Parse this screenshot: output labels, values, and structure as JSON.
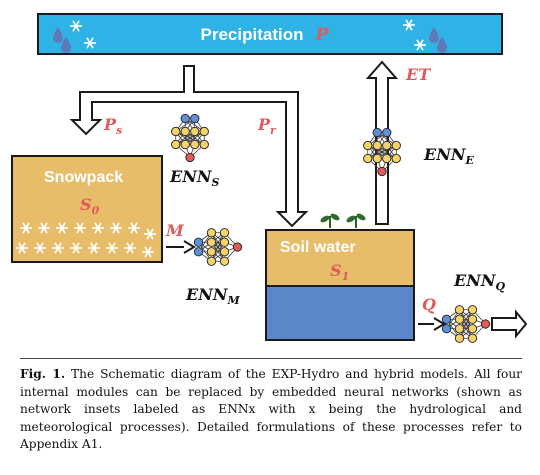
{
  "precipitation": {
    "label": "Precipitation",
    "symbol": "P"
  },
  "snowpack": {
    "label": "Snowpack",
    "state": "S",
    "state_sub": "0"
  },
  "soil": {
    "label": "Soil water",
    "state": "S",
    "state_sub": "1"
  },
  "fluxes": {
    "ps": {
      "main": "P",
      "sub": "s"
    },
    "pr": {
      "main": "P",
      "sub": "r"
    },
    "m": {
      "main": "M"
    },
    "q": {
      "main": "Q"
    },
    "et": {
      "main": "ET"
    }
  },
  "networks": {
    "s": {
      "main": "ENN",
      "sub": "S"
    },
    "m": {
      "main": "ENN",
      "sub": "M"
    },
    "e": {
      "main": "ENN",
      "sub": "E"
    },
    "q": {
      "main": "ENN",
      "sub": "Q"
    }
  },
  "colors": {
    "sky_blue": "#2fb3e6",
    "sand": "#e8bd6a",
    "soil_water": "#5b86c9",
    "accent_red": "#e05a5a",
    "node_blue": "#5f8fd8",
    "node_yellow": "#f6d36a",
    "node_red": "#e05a5a"
  },
  "caption": {
    "fig_label": "Fig. 1.",
    "text": "The Schematic diagram of the EXP-Hydro and hybrid models. All four internal modules can be replaced by embedded neural networks (shown as network insets labeled as ENNx with x being the hydrological and meteorological processes). Detailed formulations of these processes refer to Appendix A1."
  }
}
